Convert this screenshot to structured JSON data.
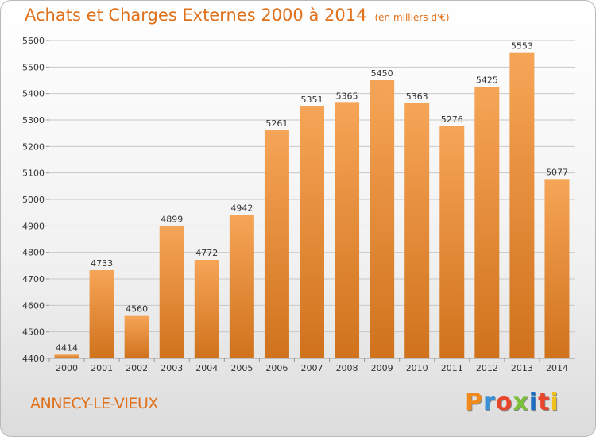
{
  "title": "Achats et Charges Externes 2000 à 2014",
  "subtitle": "(en milliers d'€)",
  "city": "ANNECY-LE-VIEUX",
  "brand": "Proxiti",
  "colors": {
    "accent": "#e0701a",
    "bar_light": "#f6a557",
    "bar_dark": "#d0721c",
    "grid": "#c8c8c8",
    "brand_letters": [
      "#f08a1c",
      "#3b8fd6",
      "#e8462c",
      "#7cbf3a",
      "#1c6fc2",
      "#e8462c",
      "#f0c01c"
    ]
  },
  "chart_data": {
    "type": "bar",
    "title": "Achats et Charges Externes 2000 à 2014",
    "subtitle": "(en milliers d'€)",
    "xlabel": "",
    "ylabel": "",
    "ylim": [
      4400,
      5600
    ],
    "yticks": [
      4400,
      4500,
      4600,
      4700,
      4800,
      4900,
      5000,
      5100,
      5200,
      5300,
      5400,
      5500,
      5600
    ],
    "grid": true,
    "categories": [
      "2000",
      "2001",
      "2002",
      "2003",
      "2004",
      "2005",
      "2006",
      "2007",
      "2008",
      "2009",
      "2010",
      "2011",
      "2012",
      "2013",
      "2014"
    ],
    "values": [
      4414,
      4733,
      4560,
      4899,
      4772,
      4942,
      5261,
      5351,
      5365,
      5450,
      5363,
      5276,
      5425,
      5553,
      5077
    ]
  }
}
